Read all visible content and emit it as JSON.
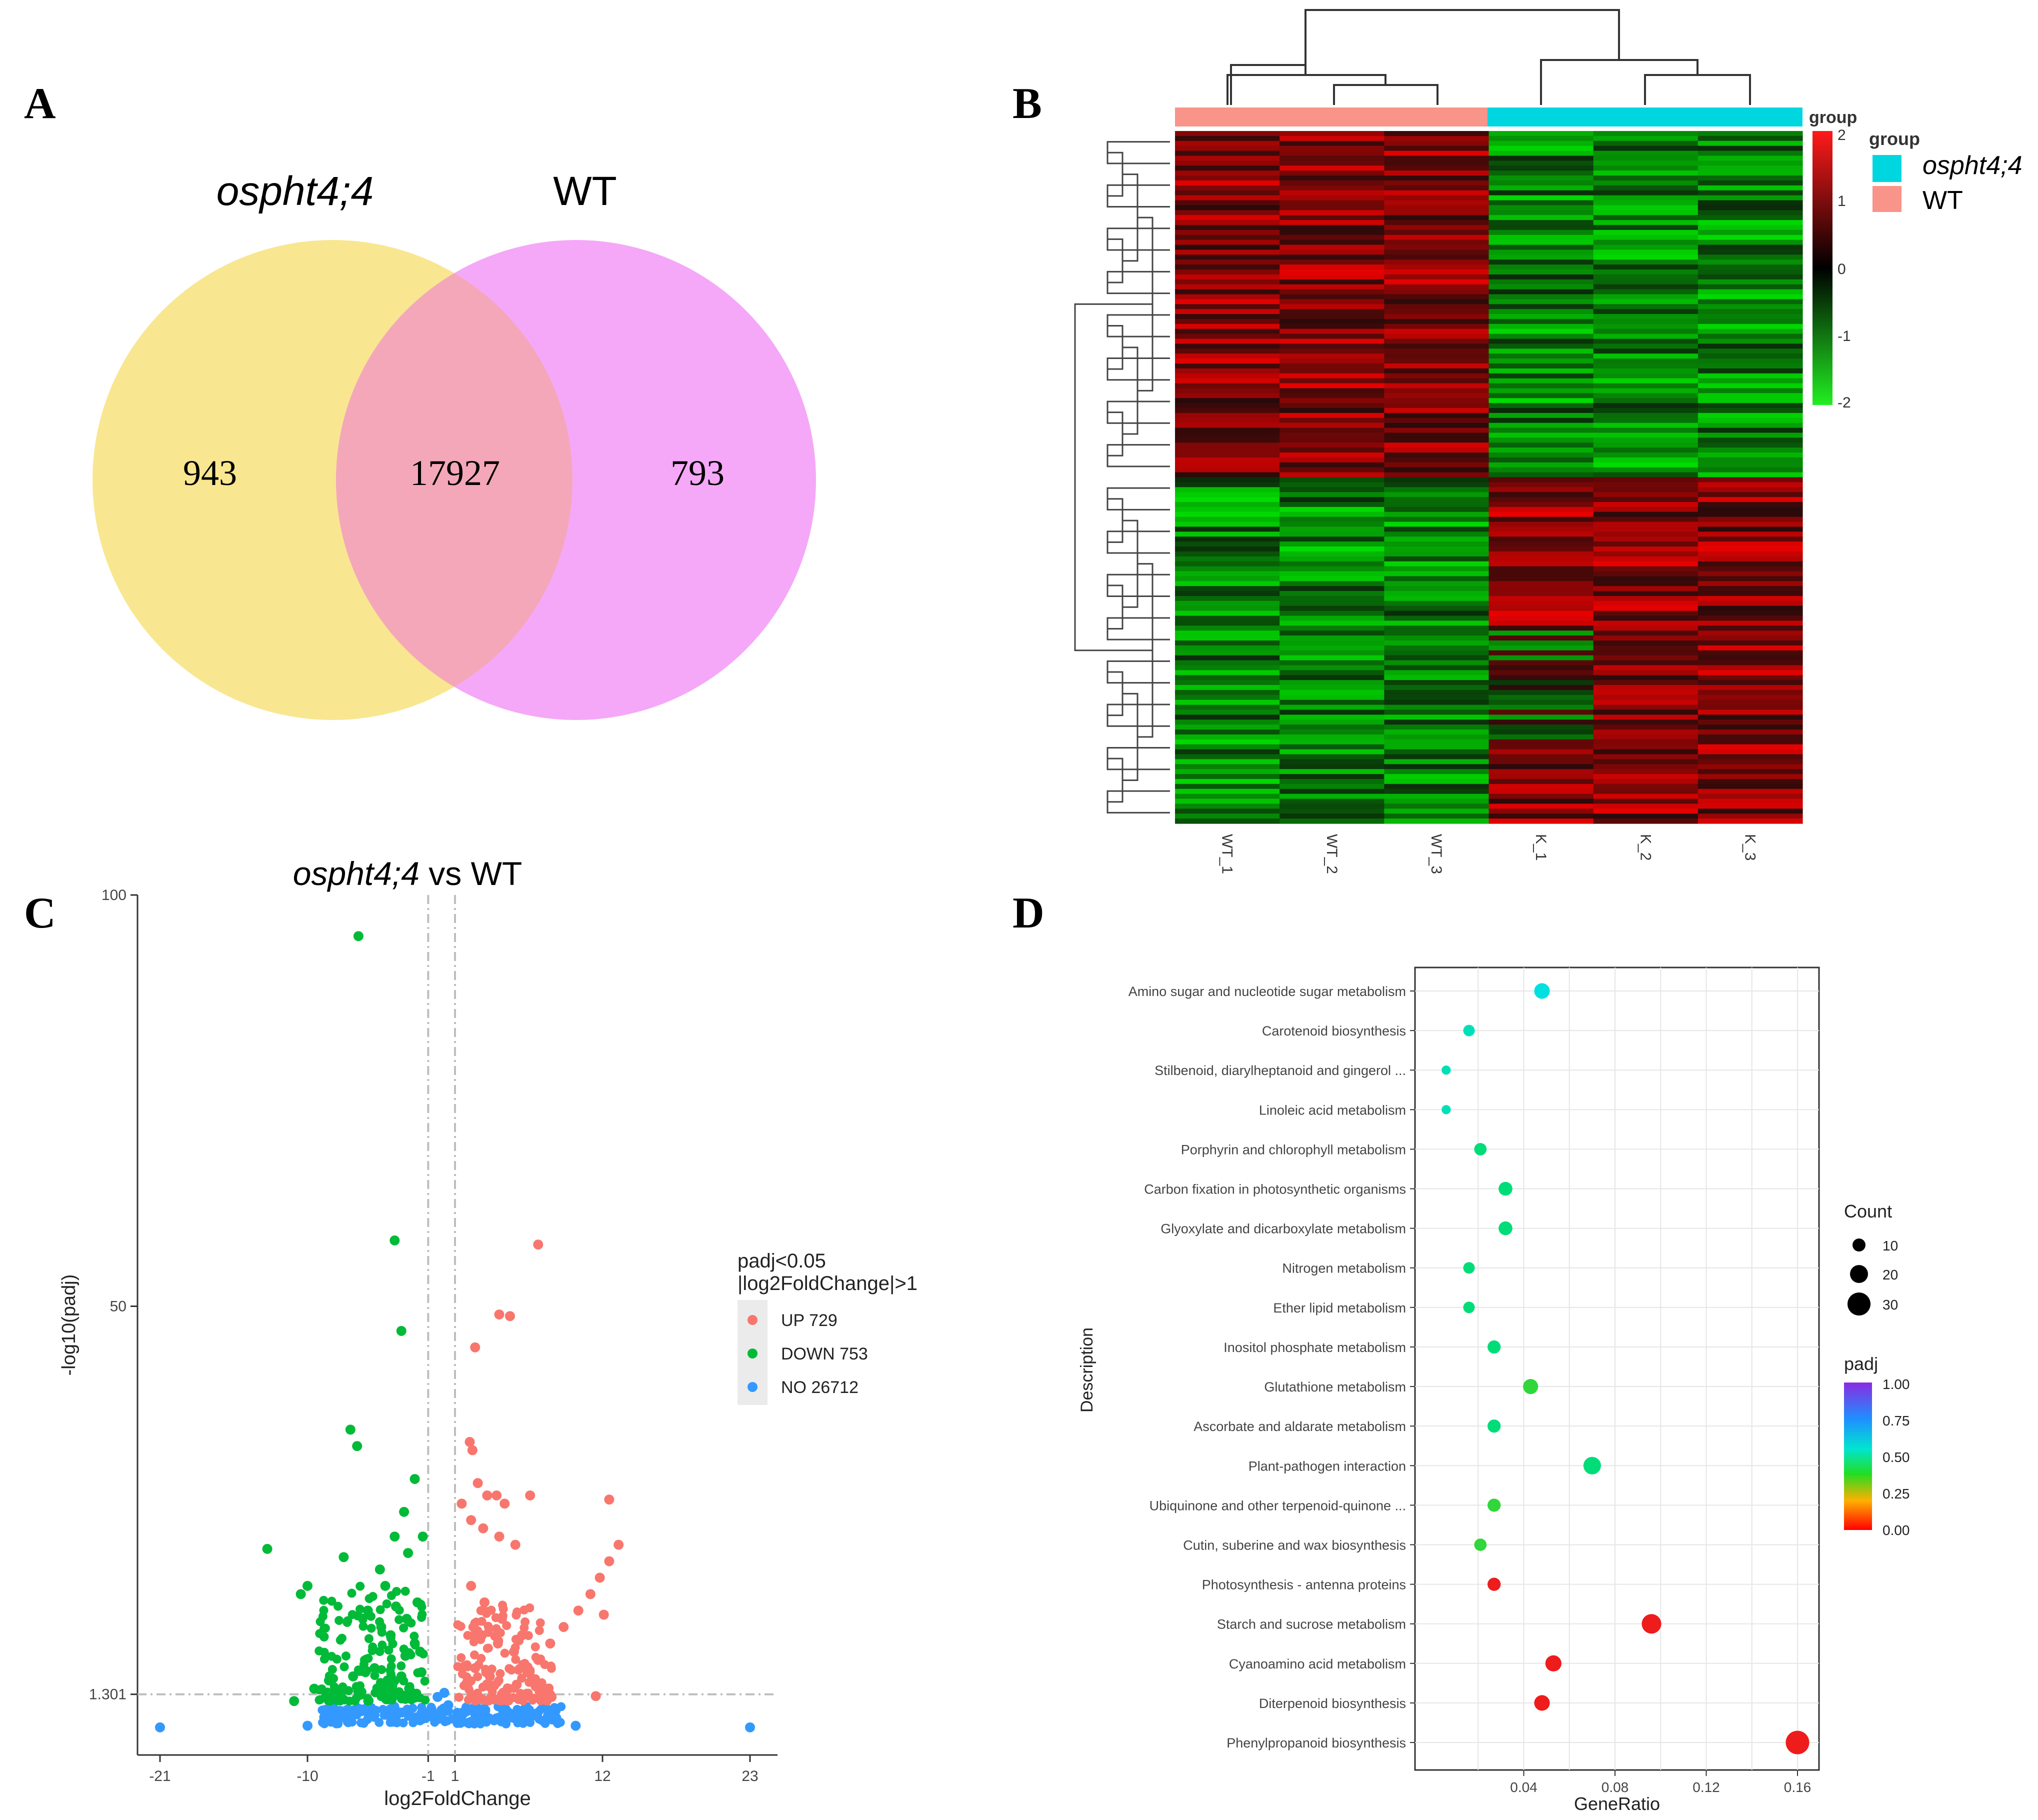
{
  "panels": {
    "A": {
      "letter": "A"
    },
    "B": {
      "letter": "B"
    },
    "C": {
      "letter": "C"
    },
    "D": {
      "letter": "D"
    }
  },
  "venn": {
    "left_label": "ospht4;4",
    "right_label": "WT",
    "left_only": "943",
    "intersection": "17927",
    "right_only": "793",
    "colors": {
      "left": "#f9e690",
      "right": "#f5a8f7",
      "overlap": "#f4a7b9"
    }
  },
  "heatmap": {
    "columns": [
      "WT_1",
      "WT_2",
      "WT_3",
      "K_1",
      "K_2",
      "K_3"
    ],
    "groups": [
      "WT",
      "WT",
      "WT",
      "ospht4;4",
      "ospht4;4",
      "ospht4;4"
    ],
    "annotation_label": "group",
    "legend_title": "group",
    "legend": [
      {
        "label": "ospht4;4",
        "color": "#00d6e0"
      },
      {
        "label": "WT",
        "color": "#f8948a"
      }
    ],
    "scale_ticks": [
      "2",
      "1",
      "0",
      "-1",
      "-2"
    ],
    "scale_range": [
      -2,
      2
    ]
  },
  "volcano": {
    "title_italic": "ospht4;4",
    "title_rest": " vs WT",
    "xlabel": "log2FoldChange",
    "ylabel": "-log10(padj)",
    "xticks": [
      "-21",
      "-10",
      "-1",
      "1",
      "12",
      "23"
    ],
    "yticks": [
      "100",
      "50",
      "1.301"
    ],
    "legend_title_1": "padj<0.05",
    "legend_title_2": "|log2FoldChange|>1",
    "legend": [
      {
        "label": "UP 729",
        "color": "#f8766d"
      },
      {
        "label": "DOWN 753",
        "color": "#00ba38"
      },
      {
        "label": "NO 26712",
        "color": "#3399ff"
      }
    ],
    "colors": {
      "up": "#f8766d",
      "down": "#00ba38",
      "no": "#3399ff"
    }
  },
  "chart_data": [
    {
      "type": "scatter",
      "title": "ospht4;4 vs WT",
      "xlabel": "log2FoldChange",
      "ylabel": "-log10(padj)",
      "xlim": [
        -21,
        23
      ],
      "ylim": [
        0,
        100
      ],
      "thresholds": {
        "x": [
          -1,
          1
        ],
        "y": 1.301
      },
      "series": [
        {
          "name": "UP 729",
          "points": [
            [
              7.2,
              57.5
            ],
            [
              4.3,
              49
            ],
            [
              5.1,
              48.8
            ],
            [
              2.5,
              45
            ],
            [
              2.1,
              33.5
            ],
            [
              2.3,
              32.5
            ],
            [
              2.7,
              28.5
            ],
            [
              3.4,
              27
            ],
            [
              4.1,
              27
            ],
            [
              4.7,
              26
            ],
            [
              6.6,
              27
            ],
            [
              1.5,
              26
            ],
            [
              2.2,
              24
            ],
            [
              3.1,
              23
            ],
            [
              4.3,
              22
            ],
            [
              5.5,
              21
            ],
            [
              12.5,
              26.5
            ],
            [
              13.2,
              21
            ],
            [
              12.5,
              19
            ],
            [
              11.8,
              17
            ],
            [
              11.1,
              15
            ],
            [
              10.2,
              13
            ],
            [
              9.1,
              11
            ],
            [
              8.1,
              9
            ],
            [
              7.2,
              7
            ],
            [
              6.4,
              5.5
            ],
            [
              5.6,
              4
            ],
            [
              3,
              10
            ],
            [
              4.2,
              9
            ],
            [
              5.4,
              8
            ],
            [
              2.2,
              16
            ],
            [
              3.2,
              14
            ],
            [
              4.5,
              12
            ],
            [
              6,
              10
            ],
            [
              2.5,
              6
            ],
            [
              3.6,
              5
            ],
            [
              5,
              3.5
            ],
            [
              8.2,
              2.5
            ],
            [
              11.5,
              2.6
            ],
            [
              12.1,
              12.5
            ]
          ]
        },
        {
          "name": "DOWN 753",
          "points": [
            [
              -6.2,
              95
            ],
            [
              -3.5,
              58
            ],
            [
              -3,
              47
            ],
            [
              -6.8,
              35
            ],
            [
              -6.3,
              33
            ],
            [
              -2,
              29
            ],
            [
              -2.8,
              25
            ],
            [
              -13,
              20.5
            ],
            [
              -7.3,
              19.5
            ],
            [
              -2.5,
              20
            ],
            [
              -10,
              16
            ],
            [
              -10.5,
              15
            ],
            [
              -4.6,
              18
            ],
            [
              -4.2,
              16
            ],
            [
              -1.8,
              14
            ],
            [
              -1.4,
              22
            ],
            [
              -3.5,
              22
            ],
            [
              -5.5,
              13
            ],
            [
              -4.5,
              11
            ],
            [
              -3.8,
              10
            ],
            [
              -2.6,
              12
            ],
            [
              -2,
              9
            ],
            [
              -1.6,
              8
            ],
            [
              -5,
              6
            ],
            [
              -6.6,
              5
            ],
            [
              -8.4,
              4.5
            ],
            [
              -9.5,
              3.5
            ],
            [
              -7.5,
              3
            ],
            [
              -11,
              2
            ],
            [
              -3,
              5
            ],
            [
              -4,
              4
            ],
            [
              -2.2,
              3
            ],
            [
              -1.5,
              5.5
            ],
            [
              -3.4,
              13.5
            ],
            [
              -2.7,
              7.5
            ]
          ]
        },
        {
          "name": "NO 26712",
          "points": [
            [
              -21,
              -1.2
            ],
            [
              23,
              -1.2
            ],
            [
              -10,
              -1
            ],
            [
              -8.5,
              0
            ],
            [
              -7,
              -0.5
            ],
            [
              -5,
              0.3
            ],
            [
              -3,
              0.6
            ],
            [
              -1.5,
              0.5
            ],
            [
              0,
              0.9
            ],
            [
              1.5,
              0.3
            ],
            [
              3,
              0.5
            ],
            [
              5,
              0.2
            ],
            [
              7,
              0.4
            ],
            [
              8.6,
              -0.5
            ],
            [
              10,
              -1
            ],
            [
              0.2,
              3
            ],
            [
              -0.3,
              2.5
            ],
            [
              0.5,
              1.5
            ]
          ]
        }
      ]
    },
    {
      "type": "scatter",
      "title": "",
      "xlabel": "GeneRatio",
      "ylabel": "Description",
      "xlim": [
        0,
        0.165
      ],
      "xticks": [
        0.04,
        0.08,
        0.12,
        0.16
      ],
      "size_legend": {
        "title": "Count",
        "values": [
          10,
          20,
          30
        ]
      },
      "color_legend": {
        "title": "padj",
        "ticks": [
          1.0,
          0.75,
          0.5,
          0.25,
          0.0
        ]
      },
      "categories": [
        "Amino sugar and nucleotide sugar metabolism",
        "Carotenoid biosynthesis",
        "Stilbenoid, diarylheptanoid and gingerol ...",
        "Linoleic acid metabolism",
        "Porphyrin and chlorophyll metabolism",
        "Carbon fixation in photosynthetic organisms",
        "Glyoxylate and dicarboxylate metabolism",
        "Nitrogen metabolism",
        "Ether lipid metabolism",
        "Inositol phosphate metabolism",
        "Glutathione metabolism",
        "Ascorbate and aldarate metabolism",
        "Plant-pathogen interaction",
        "Ubiquinone and other terpenoid-quinone ...",
        "Cutin, suberine and wax biosynthesis",
        "Photosynthesis - antenna proteins",
        "Starch and sucrose metabolism",
        "Cyanoamino acid metabolism",
        "Diterpenoid biosynthesis",
        "Phenylpropanoid biosynthesis"
      ],
      "gene_ratio": [
        0.048,
        0.016,
        0.006,
        0.006,
        0.021,
        0.032,
        0.032,
        0.016,
        0.016,
        0.027,
        0.043,
        0.027,
        0.07,
        0.027,
        0.021,
        0.027,
        0.096,
        0.053,
        0.048,
        0.16
      ],
      "count": [
        9,
        3,
        1,
        1,
        4,
        6,
        6,
        3,
        3,
        5,
        8,
        5,
        13,
        5,
        4,
        5,
        18,
        10,
        9,
        30
      ],
      "padj": [
        0.55,
        0.45,
        0.45,
        0.45,
        0.38,
        0.42,
        0.42,
        0.42,
        0.42,
        0.38,
        0.33,
        0.38,
        0.4,
        0.3,
        0.3,
        0.02,
        0.01,
        0.01,
        0.01,
        0.01
      ]
    }
  ]
}
